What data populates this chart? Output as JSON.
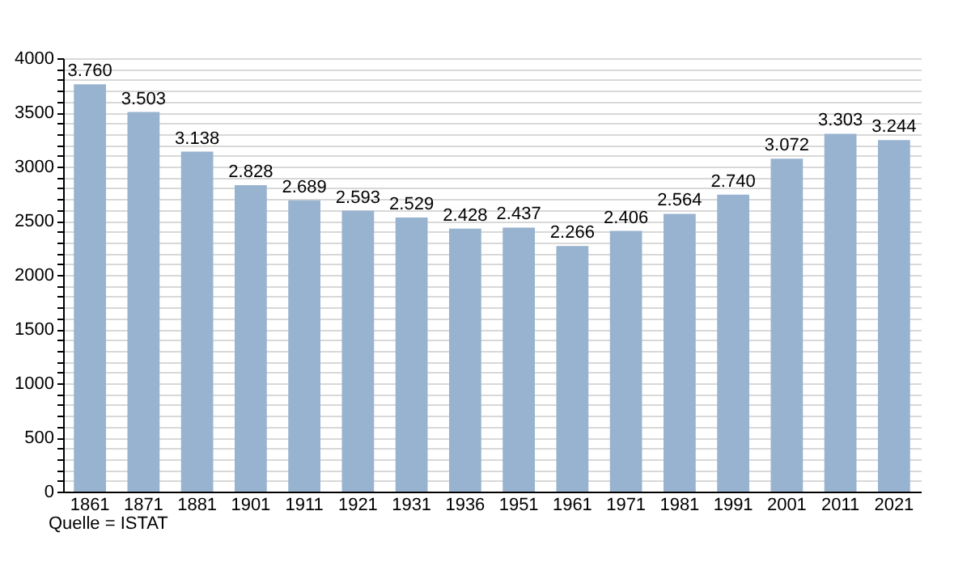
{
  "chart_data": {
    "type": "bar",
    "categories": [
      "1861",
      "1871",
      "1881",
      "1901",
      "1911",
      "1921",
      "1931",
      "1936",
      "1951",
      "1961",
      "1971",
      "1981",
      "1991",
      "2001",
      "2011",
      "2021"
    ],
    "values": [
      3760,
      3503,
      3138,
      2828,
      2689,
      2593,
      2529,
      2428,
      2437,
      2266,
      2406,
      2564,
      2740,
      3072,
      3303,
      3244
    ],
    "value_labels": [
      "3.760",
      "3.503",
      "3.138",
      "2.828",
      "2.689",
      "2.593",
      "2.529",
      "2.428",
      "2.437",
      "2.266",
      "2.406",
      "2.564",
      "2.740",
      "3.072",
      "3.303",
      "3.244"
    ],
    "color": "#98b3cf",
    "ylim": [
      0,
      4000
    ],
    "yticks": [
      0,
      {
        "value": 100,
        "label": null
      },
      {
        "value": 200,
        "label": null
      },
      {
        "value": 300,
        "label": null
      },
      {
        "value": 400,
        "label": null
      },
      500,
      {
        "value": 600,
        "label": null
      },
      {
        "value": 700,
        "label": null
      },
      {
        "value": 800,
        "label": null
      },
      {
        "value": 900,
        "label": null
      },
      1000,
      {
        "value": 1100,
        "label": null
      },
      {
        "value": 1200,
        "label": null
      },
      {
        "value": 1300,
        "label": null
      },
      {
        "value": 1400,
        "label": null
      },
      1500,
      {
        "value": 1600,
        "label": null
      },
      {
        "value": 1700,
        "label": null
      },
      {
        "value": 1800,
        "label": null
      },
      {
        "value": 1900,
        "label": null
      },
      2000,
      {
        "value": 2100,
        "label": null
      },
      {
        "value": 2200,
        "label": null
      },
      {
        "value": 2300,
        "label": null
      },
      {
        "value": 2400,
        "label": null
      },
      2500,
      {
        "value": 2600,
        "label": null
      },
      {
        "value": 2700,
        "label": null
      },
      {
        "value": 2800,
        "label": null
      },
      {
        "value": 2900,
        "label": null
      },
      3000,
      {
        "value": 3100,
        "label": null
      },
      {
        "value": 3200,
        "label": null
      },
      {
        "value": 3300,
        "label": null
      },
      {
        "value": 3400,
        "label": null
      },
      3500,
      {
        "value": 3600,
        "label": null
      },
      {
        "value": 3700,
        "label": null
      },
      {
        "value": 3800,
        "label": null
      },
      {
        "value": 3900,
        "label": null
      },
      4000
    ],
    "grid": "y",
    "annotations": [
      "Quelle = ISTAT"
    ]
  }
}
